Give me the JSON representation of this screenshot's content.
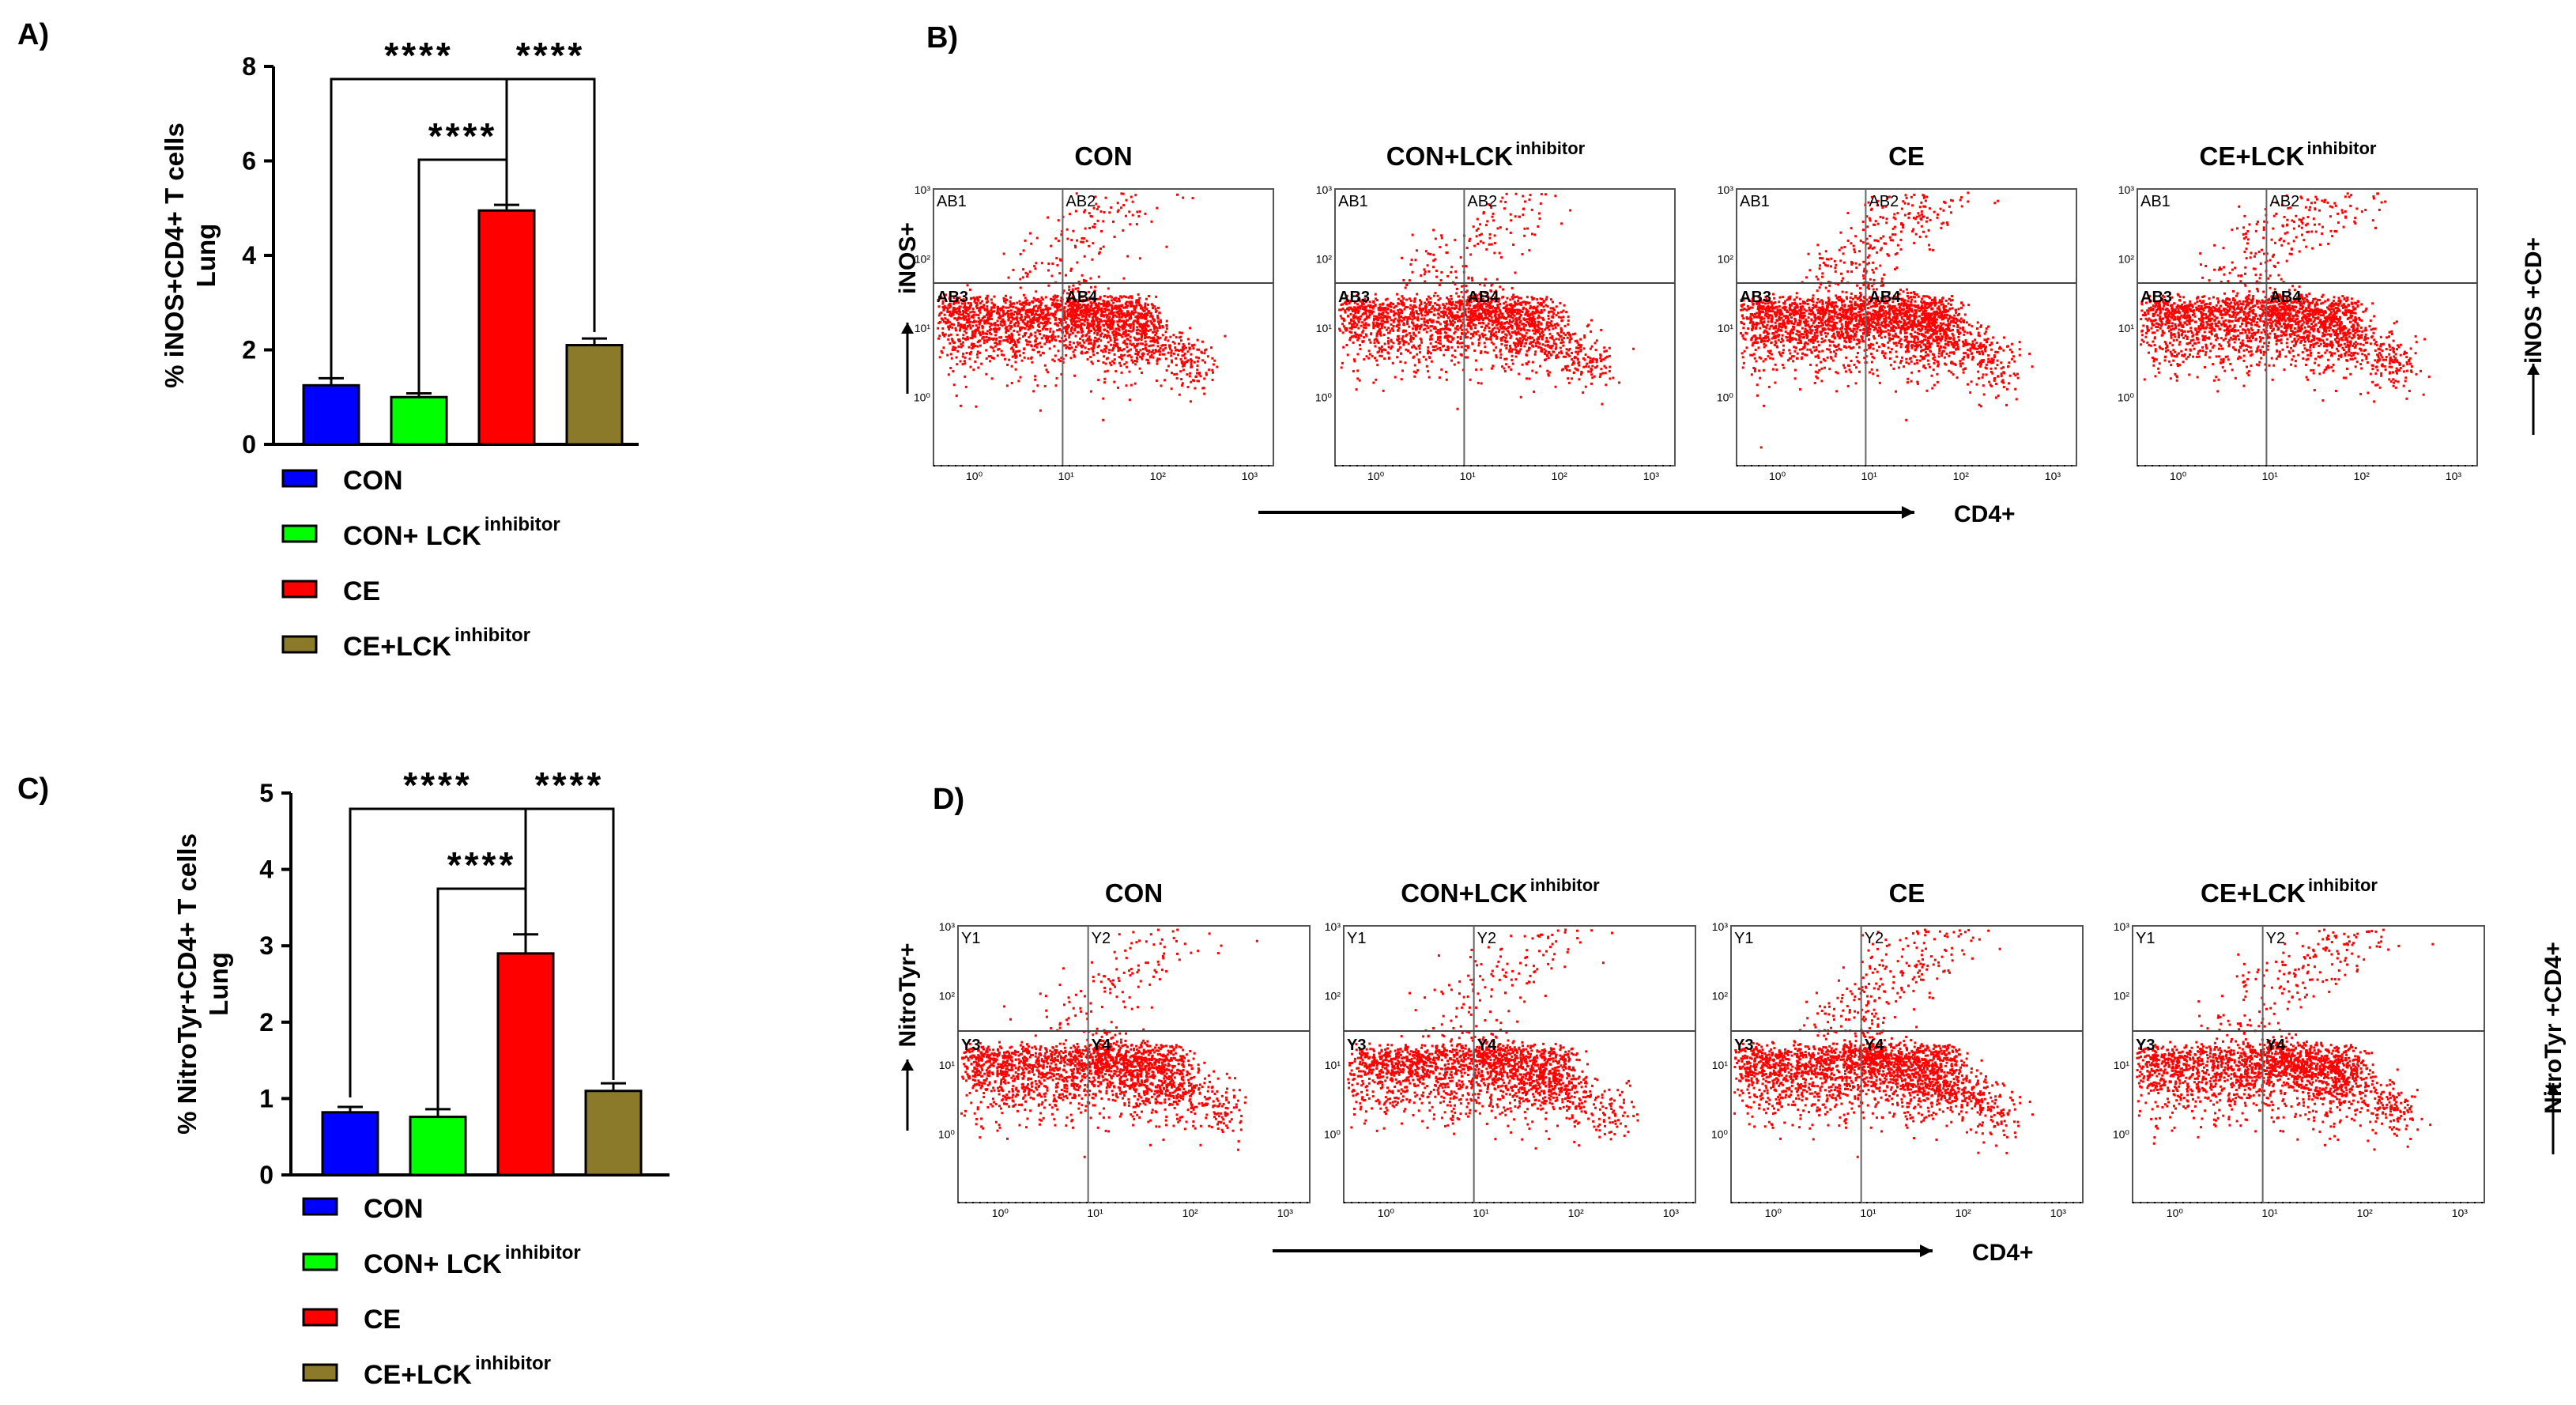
{
  "panels": {
    "a": "A)",
    "b": "B)",
    "c": "C)",
    "d": "D)"
  },
  "colors": {
    "CON": "#0000ff",
    "CON_LCK": "#00ff00",
    "CE": "#ff0000",
    "CE_LCK": "#8c7a2b",
    "dots": "#ff0000"
  },
  "chart_data": [
    {
      "type": "bar",
      "panel": "A)",
      "ylabel": "% iNOS+CD4+ T cells Lung",
      "ylabel_lines": [
        "% iNOS+CD4+ T cells",
        "Lung"
      ],
      "ylim": [
        0,
        8
      ],
      "yticks": [
        0,
        2,
        4,
        6,
        8
      ],
      "series": [
        {
          "name": "CON",
          "value": 1.25,
          "error": 0.15,
          "color": "#0000ff"
        },
        {
          "name": "CON+ LCKinhibitor",
          "value": 1.0,
          "error": 0.08,
          "color": "#00ff00"
        },
        {
          "name": "CE",
          "value": 4.95,
          "error": 0.12,
          "color": "#ff0000"
        },
        {
          "name": "CE+LCKinhibitor",
          "value": 2.1,
          "error": 0.14,
          "color": "#8c7a2b"
        }
      ],
      "significance": [
        {
          "label": "****",
          "from": 0,
          "to": 2
        },
        {
          "label": "****",
          "from": 2,
          "to": 3
        },
        {
          "label": "****",
          "from": 1,
          "to": 2
        }
      ],
      "legend": [
        {
          "text": "CON",
          "sup": ""
        },
        {
          "text": "CON+ LCK",
          "sup": "inhibitor"
        },
        {
          "text": "CE",
          "sup": ""
        },
        {
          "text": "CE+LCK",
          "sup": "inhibitor"
        }
      ]
    },
    {
      "type": "scatter",
      "panel": "B)",
      "xlabel": "CD4+",
      "ylabel": "iNOS+",
      "right_label": "iNOS +CD+",
      "plots": [
        {
          "title": "CON",
          "title_sup": "",
          "quadrants": [
            "AB1",
            "AB2",
            "AB3",
            "AB4"
          ]
        },
        {
          "title": "CON+LCK",
          "title_sup": "inhibitor",
          "quadrants": [
            "AB1",
            "AB2",
            "AB3",
            "AB4"
          ]
        },
        {
          "title": "CE",
          "title_sup": "",
          "quadrants": [
            "AB1",
            "AB2",
            "AB3",
            "AB4"
          ]
        },
        {
          "title": "CE+LCK",
          "title_sup": "inhibitor",
          "quadrants": [
            "AB1",
            "AB2",
            "AB3",
            "AB4"
          ]
        }
      ],
      "x_decades": [
        "10⁰",
        "10¹",
        "10²",
        "10³"
      ],
      "y_decades": [
        "10³",
        "10²",
        "10¹",
        "10⁰"
      ]
    },
    {
      "type": "bar",
      "panel": "C)",
      "ylabel": "% NitroTyr+CD4+ T cells Lung",
      "ylabel_lines": [
        "% NitroTyr+CD4+ T cells",
        "Lung"
      ],
      "ylim": [
        0,
        5
      ],
      "yticks": [
        0,
        1,
        2,
        3,
        4,
        5
      ],
      "series": [
        {
          "name": "CON",
          "value": 0.82,
          "error": 0.07,
          "color": "#0000ff"
        },
        {
          "name": "CON+ LCKinhibitor",
          "value": 0.76,
          "error": 0.1,
          "color": "#00ff00"
        },
        {
          "name": "CE",
          "value": 2.9,
          "error": 0.25,
          "color": "#ff0000"
        },
        {
          "name": "CE+LCKinhibitor",
          "value": 1.1,
          "error": 0.1,
          "color": "#8c7a2b"
        }
      ],
      "significance": [
        {
          "label": "****",
          "from": 0,
          "to": 2
        },
        {
          "label": "****",
          "from": 2,
          "to": 3
        },
        {
          "label": "****",
          "from": 1,
          "to": 2
        }
      ],
      "legend": [
        {
          "text": "CON",
          "sup": ""
        },
        {
          "text": "CON+ LCK",
          "sup": "inhibitor"
        },
        {
          "text": "CE",
          "sup": ""
        },
        {
          "text": "CE+LCK",
          "sup": "inhibitor"
        }
      ]
    },
    {
      "type": "scatter",
      "panel": "D)",
      "xlabel": "CD4+",
      "ylabel": "NitroTyr+",
      "right_label": "NitroTyr +CD4+",
      "plots": [
        {
          "title": "CON",
          "title_sup": "",
          "quadrants": [
            "Y1",
            "Y2",
            "Y3",
            "Y4"
          ]
        },
        {
          "title": "CON+LCK",
          "title_sup": "inhibitor",
          "quadrants": [
            "Y1",
            "Y2",
            "Y3",
            "Y4"
          ]
        },
        {
          "title": "CE",
          "title_sup": "",
          "quadrants": [
            "Y1",
            "Y2",
            "Y3",
            "Y4"
          ]
        },
        {
          "title": "CE+LCK",
          "title_sup": "inhibitor",
          "quadrants": [
            "Y1",
            "Y2",
            "Y3",
            "Y4"
          ]
        }
      ],
      "x_decades": [
        "10⁰",
        "10¹",
        "10²",
        "10³"
      ],
      "y_decades": [
        "10³",
        "10²",
        "10¹",
        "10⁰"
      ]
    }
  ]
}
